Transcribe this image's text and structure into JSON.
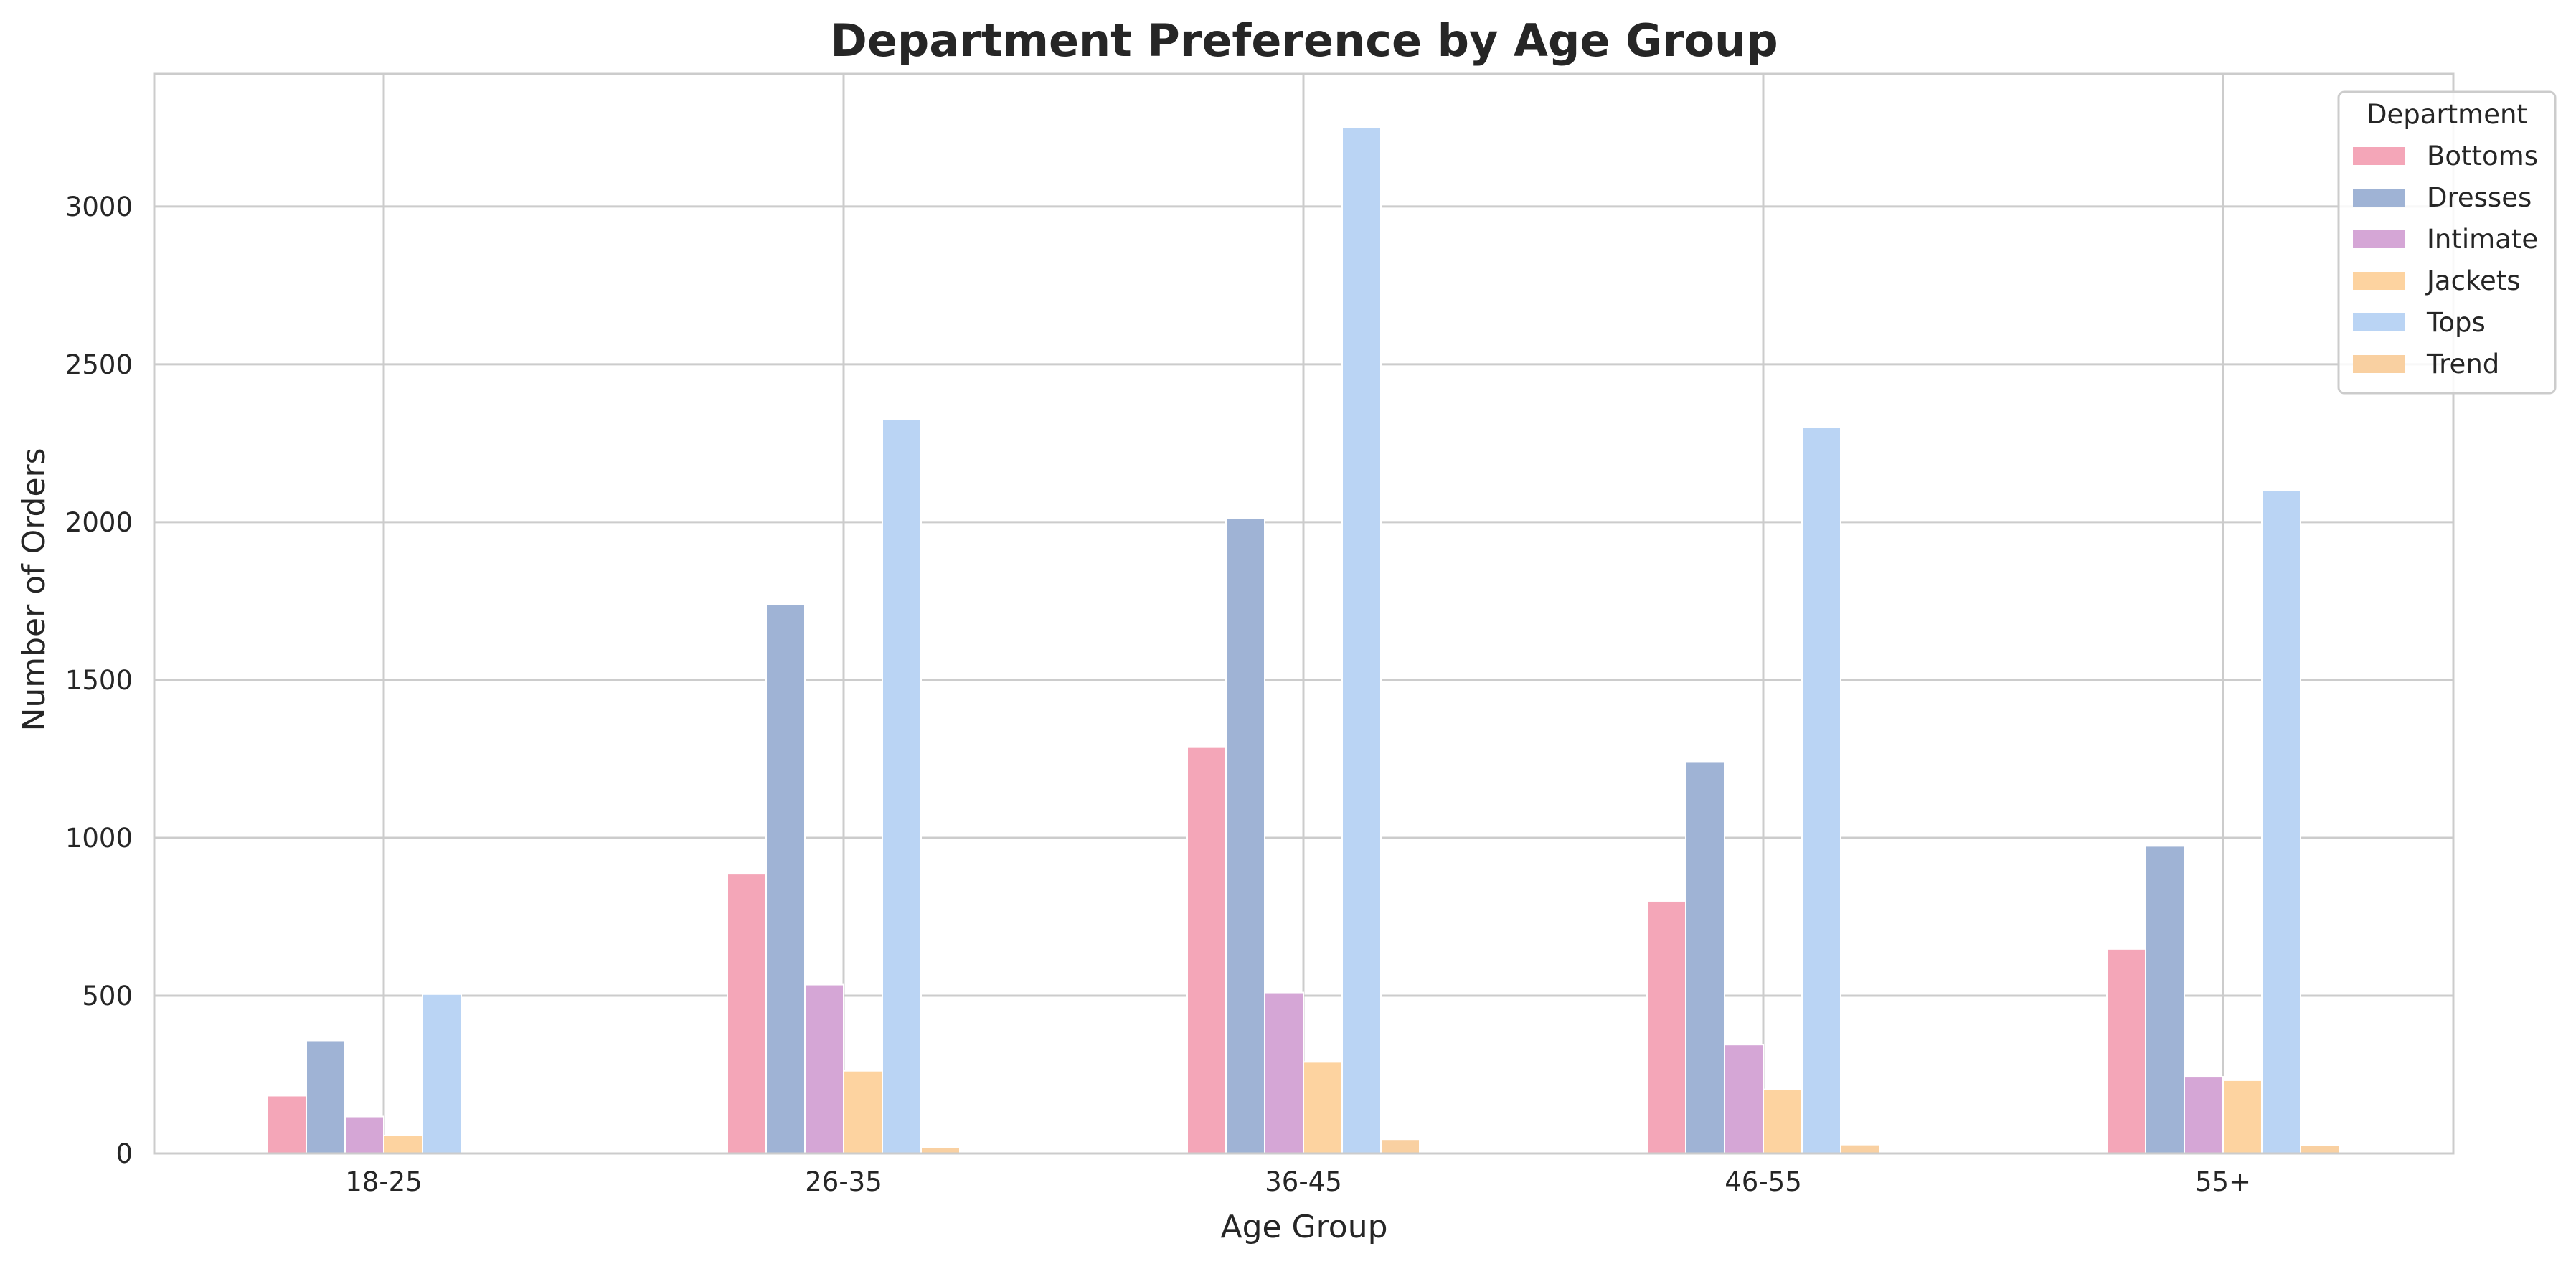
{
  "chart_data": {
    "type": "bar",
    "title": "Department Preference by Age Group",
    "xlabel": "Age Group",
    "ylabel": "Number of Orders",
    "categories": [
      "18-25",
      "26-35",
      "36-45",
      "46-55",
      "55+"
    ],
    "ylim": [
      0,
      3420
    ],
    "yticks": [
      0,
      500,
      1000,
      1500,
      2000,
      2500,
      3000
    ],
    "grid": true,
    "legend": {
      "title": "Department",
      "placement": "top-right"
    },
    "series": [
      {
        "name": "Bottoms",
        "color": "#f4a6b8",
        "values": [
          183,
          886,
          1287,
          800,
          648
        ]
      },
      {
        "name": "Dresses",
        "color": "#9fb3d5",
        "values": [
          358,
          1740,
          2012,
          1242,
          974
        ]
      },
      {
        "name": "Intimate",
        "color": "#d5a6d6",
        "values": [
          117,
          535,
          510,
          345,
          243
        ]
      },
      {
        "name": "Jackets",
        "color": "#fdd3a0",
        "values": [
          57,
          262,
          290,
          203,
          232
        ]
      },
      {
        "name": "Tops",
        "color": "#bad4f4",
        "values": [
          505,
          2325,
          3250,
          2300,
          2100
        ]
      },
      {
        "name": "Trend",
        "color": "#f9d0a1",
        "values": [
          2,
          20,
          45,
          28,
          25
        ]
      }
    ]
  }
}
